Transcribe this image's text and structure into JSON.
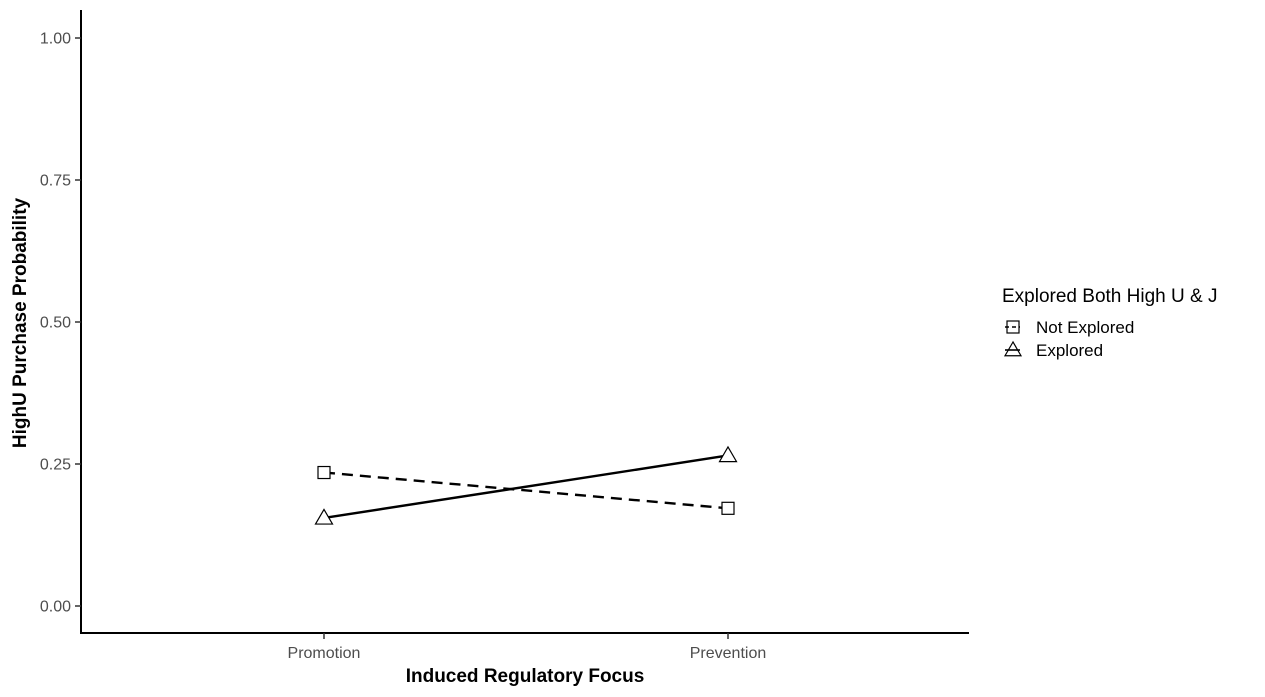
{
  "chart_data": {
    "type": "line",
    "title": "",
    "xlabel": "Induced Regulatory Focus",
    "ylabel": "HighU Purchase Probability",
    "categories": [
      "Promotion",
      "Prevention"
    ],
    "ylim": [
      0,
      1
    ],
    "yticks": [
      "0.00",
      "0.25",
      "0.50",
      "0.75",
      "1.00"
    ],
    "grid": false,
    "legend": {
      "title": "Explored Both High U & J",
      "placement": "right"
    },
    "series": [
      {
        "name": "Not Explored",
        "values": [
          0.235,
          0.172
        ],
        "linetype": "dashed",
        "marker": "square"
      },
      {
        "name": "Explored",
        "values": [
          0.155,
          0.265
        ],
        "linetype": "solid",
        "marker": "triangle"
      }
    ]
  }
}
